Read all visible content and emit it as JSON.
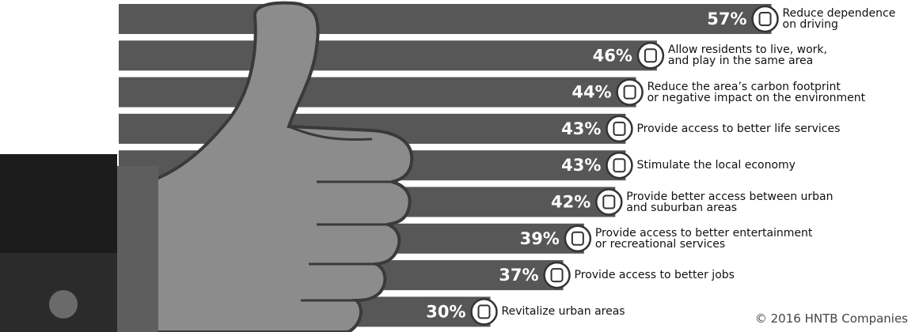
{
  "chart_data": {
    "type": "bar",
    "orientation": "horizontal",
    "categories": [
      "Reduce dependence\non driving",
      "Allow residents to live, work,\nand play in the same area",
      "Reduce the area’s carbon footprint\nor negative impact on the environment",
      "Provide access to better life services",
      "Stimulate the local economy",
      "Provide better access between urban\nand suburban areas",
      "Provide access to better entertainment\nor recreational services",
      "Provide access to better jobs",
      "Revitalize urban areas"
    ],
    "values": [
      57,
      46,
      44,
      43,
      43,
      42,
      39,
      37,
      30
    ],
    "value_labels": [
      "57%",
      "46%",
      "44%",
      "43%",
      "43%",
      "42%",
      "39%",
      "37%",
      "30%"
    ],
    "color": "#575757",
    "source": "© 2016 HNTB Companies"
  }
}
